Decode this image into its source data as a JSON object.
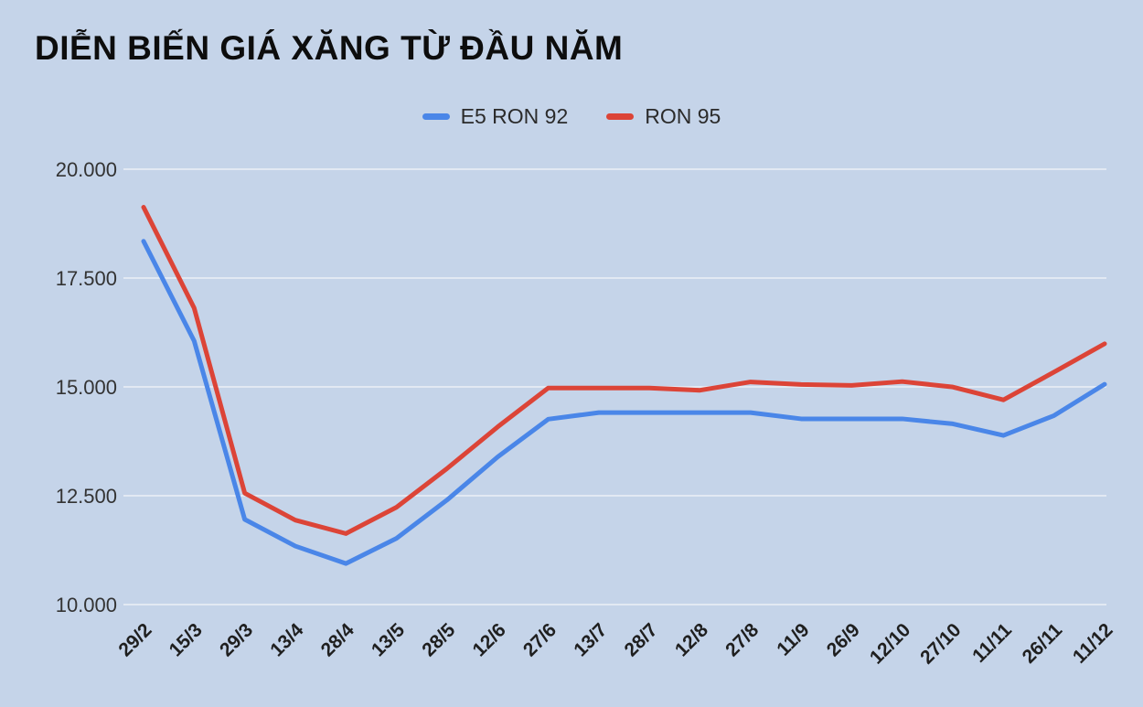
{
  "title": "DIỄN BIẾN GIÁ XĂNG TỪ ĐẦU NĂM",
  "chart_data": {
    "type": "line",
    "title": "DIỄN BIẾN GIÁ XĂNG TỪ ĐẦU NĂM",
    "categories": [
      "29/2",
      "15/3",
      "29/3",
      "13/4",
      "28/4",
      "13/5",
      "28/5",
      "12/6",
      "27/6",
      "13/7",
      "28/7",
      "12/8",
      "27/8",
      "11/9",
      "26/9",
      "12/10",
      "27/10",
      "11/11",
      "26/11",
      "11/12"
    ],
    "series": [
      {
        "name": "E5 RON 92",
        "color": "#4a86e8",
        "values": [
          18346,
          16056,
          11956,
          11343,
          10942,
          11520,
          12402,
          13390,
          14258,
          14409,
          14409,
          14409,
          14409,
          14266,
          14266,
          14266,
          14151,
          13885,
          14340,
          15060
        ]
      },
      {
        "name": "RON 95",
        "color": "#dc4437",
        "values": [
          19127,
          16812,
          12560,
          11939,
          11631,
          12235,
          13125,
          14080,
          14973,
          14973,
          14973,
          14922,
          15114,
          15055,
          15033,
          15122,
          14997,
          14701,
          15340,
          15990
        ]
      }
    ],
    "ylim": [
      10000,
      20000
    ],
    "y_ticks": [
      10000,
      12500,
      15000,
      17500,
      20000
    ],
    "y_tick_labels": [
      "10.000",
      "12.500",
      "15.000",
      "17.500",
      "20.000"
    ],
    "xlabel": "",
    "ylabel": "",
    "grid": true,
    "legend_position": "top-center",
    "background_color": "#c5d4e9",
    "gridline_color": "#e2e9f3"
  }
}
